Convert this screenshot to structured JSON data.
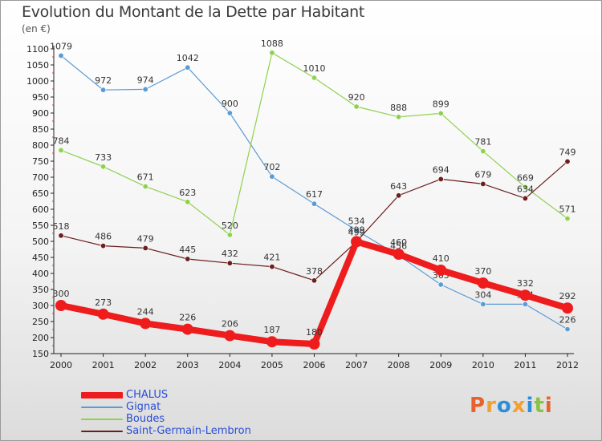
{
  "header": {
    "title": "Evolution du Montant de la Dette par Habitant",
    "unit": "(en €)"
  },
  "logo": {
    "text": "Proxiti",
    "letters": [
      "P",
      "r",
      "o",
      "x",
      "i",
      "t",
      "i"
    ],
    "colors": [
      "#e8622b",
      "#f0a132",
      "#2b8fd8",
      "#f0a132",
      "#2b8fd8",
      "#89c33f",
      "#e8622b"
    ]
  },
  "chart_data": {
    "type": "line",
    "title": "Evolution du Montant de la Dette par Habitant",
    "ylabel": "(en €)",
    "xlabel": "",
    "x": [
      "2000",
      "2001",
      "2002",
      "2003",
      "2004",
      "2005",
      "2006",
      "2007",
      "2008",
      "2009",
      "2010",
      "2011",
      "2012"
    ],
    "ylim": [
      150,
      1100
    ],
    "yticks": [
      "150",
      "200",
      "250",
      "300",
      "350",
      "400",
      "450",
      "500",
      "550",
      "600",
      "650",
      "700",
      "750",
      "800",
      "850",
      "900",
      "950",
      "1000",
      "1050",
      "1100"
    ],
    "grid": false,
    "legend_position": "bottom-left",
    "series": [
      {
        "name": "Gignat",
        "color": "#5b9bd5",
        "values": [
          1079,
          972,
          974,
          1042,
          900,
          702,
          617,
          534,
          456,
          365,
          304,
          304,
          226
        ],
        "labels": [
          "1079",
          "972",
          "974",
          "1042",
          "900",
          "702",
          "617",
          "534",
          "456",
          "365",
          "304",
          "304",
          "226"
        ]
      },
      {
        "name": "Boudes",
        "color": "#8fd14f",
        "values": [
          784,
          733,
          671,
          623,
          520,
          1088,
          1010,
          920,
          888,
          899,
          781,
          669,
          571
        ],
        "labels": [
          "784",
          "733",
          "671",
          "623",
          "520",
          "1088",
          "1010",
          "920",
          "888",
          "899",
          "781",
          "669",
          "571"
        ]
      },
      {
        "name": "Saint-Germain-Lembron",
        "color": "#6b1e1e",
        "values": [
          518,
          486,
          479,
          445,
          432,
          421,
          378,
          499,
          643,
          694,
          679,
          634,
          749
        ],
        "labels": [
          "518",
          "486",
          "479",
          "445",
          "432",
          "421",
          "378",
          "499",
          "643",
          "694",
          "679",
          "634",
          "749"
        ]
      },
      {
        "name": "CHALUS",
        "color": "#ee1c1c",
        "values": [
          300,
          273,
          244,
          226,
          206,
          187,
          180,
          499,
          460,
          410,
          370,
          332,
          292
        ],
        "labels": [
          "300",
          "273",
          "244",
          "226",
          "206",
          "187",
          "180",
          "499",
          "460",
          "410",
          "370",
          "332",
          "292"
        ]
      }
    ]
  }
}
